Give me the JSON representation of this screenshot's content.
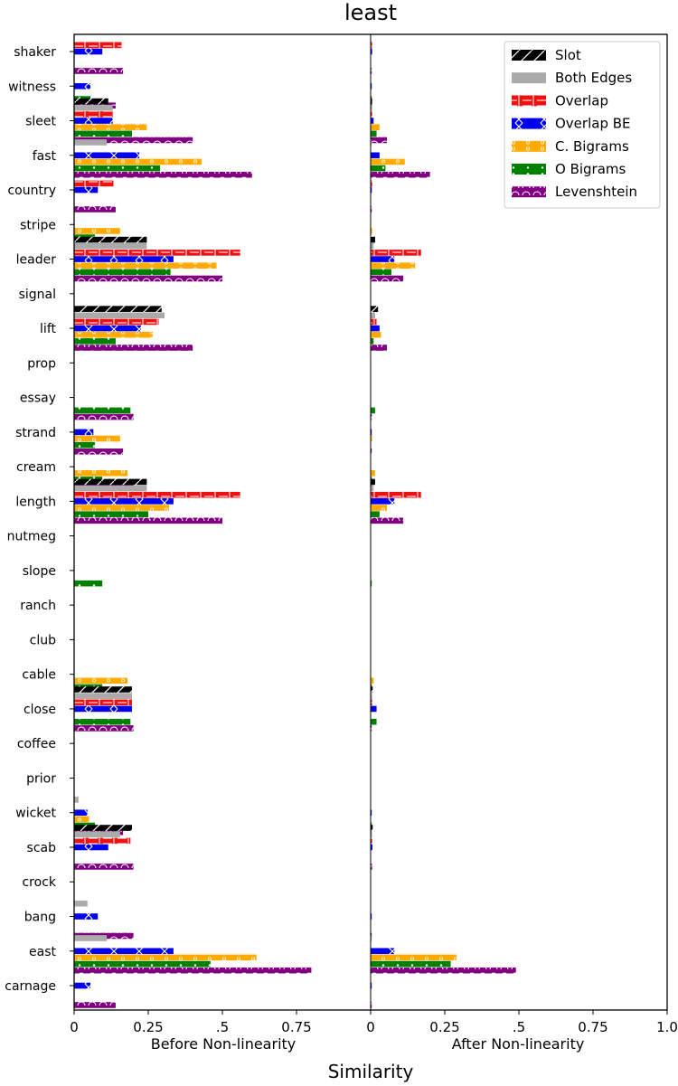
{
  "chart_data": {
    "type": "bar",
    "orientation": "horizontal",
    "title": "least",
    "xlabel": "Similarity",
    "panels": [
      {
        "name": "Before Non-linearity",
        "xlim": [
          0,
          1
        ],
        "tick_labels": [
          "0",
          "0.25",
          ".5",
          "0.75",
          ""
        ]
      },
      {
        "name": "After Non-linearity",
        "xlim": [
          0,
          1
        ],
        "tick_labels": [
          "0",
          "0.25",
          ".5",
          "0.75",
          "1.0"
        ]
      }
    ],
    "categories": [
      "shaker",
      "witness",
      "sleet",
      "fast",
      "country",
      "stripe",
      "leader",
      "signal",
      "lift",
      "prop",
      "essay",
      "strand",
      "cream",
      "length",
      "nutmeg",
      "slope",
      "ranch",
      "club",
      "cable",
      "close",
      "coffee",
      "prior",
      "wicket",
      "scab",
      "crock",
      "bang",
      "east",
      "carnage"
    ],
    "series": [
      {
        "name": "Slot",
        "color": "#000000",
        "pattern": "slash",
        "before": [
          0,
          0,
          0.115,
          0,
          0,
          0,
          0.245,
          0,
          0.295,
          0,
          0,
          0,
          0,
          0.245,
          0,
          0,
          0,
          0,
          0,
          0.195,
          0,
          0,
          0,
          0.195,
          0,
          0,
          0,
          0
        ],
        "after": [
          0,
          0,
          0.005,
          0,
          0,
          0,
          0.015,
          0,
          0.025,
          0,
          0,
          0,
          0,
          0.015,
          0,
          0,
          0,
          0,
          0,
          0.007,
          0,
          0,
          0,
          0.007,
          0,
          0,
          0,
          0
        ]
      },
      {
        "name": "Both Edges",
        "color": "#aaaaaa",
        "pattern": "none",
        "before": [
          0,
          0,
          0.13,
          0.11,
          0,
          0,
          0.245,
          0,
          0.305,
          0,
          0,
          0,
          0,
          0.245,
          0,
          0,
          0,
          0,
          0,
          0.195,
          0,
          0,
          0.015,
          0.155,
          0,
          0.045,
          0.11,
          0
        ],
        "after": [
          0,
          0,
          0.005,
          0.003,
          0,
          0,
          0.01,
          0,
          0.015,
          0,
          0,
          0,
          0,
          0.01,
          0,
          0,
          0,
          0,
          0,
          0.005,
          0,
          0,
          0,
          0.005,
          0,
          0,
          0.003,
          0
        ]
      },
      {
        "name": "Overlap",
        "color": "#ee1111",
        "pattern": "dash",
        "before": [
          0.16,
          0,
          0.13,
          0,
          0.135,
          0,
          0.56,
          0,
          0.285,
          0,
          0,
          0,
          0,
          0.56,
          0,
          0,
          0,
          0,
          0,
          0.195,
          0,
          0,
          0,
          0.19,
          0,
          0,
          0,
          0
        ],
        "after": [
          0.005,
          0,
          0.005,
          0,
          0.005,
          0,
          0.17,
          0,
          0.02,
          0,
          0,
          0,
          0,
          0.17,
          0,
          0,
          0,
          0,
          0,
          0.005,
          0,
          0,
          0,
          0.005,
          0,
          0,
          0,
          0
        ]
      },
      {
        "name": "Overlap BE",
        "color": "#0000ee",
        "pattern": "cross",
        "before": [
          0.095,
          0.055,
          0.13,
          0.22,
          0.08,
          0,
          0.335,
          0,
          0.225,
          0,
          0,
          0.065,
          0,
          0.335,
          0,
          0,
          0,
          0,
          0,
          0.195,
          0,
          0,
          0.045,
          0.115,
          0,
          0.08,
          0.335,
          0.055
        ],
        "after": [
          0.005,
          0.002,
          0.01,
          0.03,
          0.004,
          0,
          0.08,
          0,
          0.03,
          0,
          0,
          0.002,
          0,
          0.08,
          0,
          0,
          0,
          0,
          0,
          0.02,
          0,
          0,
          0.002,
          0.006,
          0,
          0.003,
          0.08,
          0.002
        ]
      },
      {
        "name": "C. Bigrams",
        "color": "#ffaa00",
        "pattern": "dots",
        "before": [
          0,
          0,
          0.245,
          0.43,
          0,
          0.155,
          0.48,
          0,
          0.265,
          0,
          0,
          0.155,
          0.18,
          0.32,
          0,
          0,
          0,
          0,
          0.18,
          0,
          0,
          0,
          0.05,
          0,
          0,
          0,
          0.615,
          0
        ],
        "after": [
          0,
          0,
          0.03,
          0.115,
          0,
          0.005,
          0.15,
          0,
          0.035,
          0,
          0,
          0.005,
          0.015,
          0.055,
          0,
          0,
          0,
          0,
          0.01,
          0,
          0,
          0,
          0,
          0,
          0,
          0,
          0.29,
          0
        ]
      },
      {
        "name": "O Bigrams",
        "color": "#008000",
        "pattern": "circles",
        "before": [
          0,
          0.055,
          0.195,
          0.29,
          0,
          0.07,
          0.325,
          0,
          0.14,
          0,
          0.19,
          0.07,
          0.095,
          0.25,
          0,
          0.095,
          0,
          0,
          0.095,
          0.19,
          0,
          0,
          0.07,
          0,
          0,
          0,
          0.46,
          0
        ],
        "after": [
          0,
          0.001,
          0.02,
          0.05,
          0,
          0,
          0.07,
          0,
          0.01,
          0,
          0.015,
          0,
          0.001,
          0.03,
          0,
          0.002,
          0,
          0,
          0.001,
          0.02,
          0,
          0,
          0.001,
          0,
          0,
          0,
          0.27,
          0
        ]
      },
      {
        "name": "Levenshtein",
        "color": "#800080",
        "pattern": "wave",
        "before": [
          0.165,
          0.14,
          0.4,
          0.6,
          0.14,
          0,
          0.5,
          0,
          0.4,
          0,
          0.2,
          0.165,
          0.2,
          0.5,
          0,
          0,
          0,
          0,
          0,
          0.2,
          0,
          0,
          0.165,
          0.2,
          0,
          0.2,
          0.8,
          0.14
        ],
        "after": [
          0.002,
          0.002,
          0.055,
          0.2,
          0.002,
          0,
          0.11,
          0,
          0.055,
          0,
          0.003,
          0.002,
          0.003,
          0.11,
          0,
          0,
          0,
          0,
          0,
          0.003,
          0,
          0,
          0.002,
          0.005,
          0,
          0.003,
          0.49,
          0.002
        ]
      }
    ],
    "legend_position": "top-right",
    "grid": false
  }
}
